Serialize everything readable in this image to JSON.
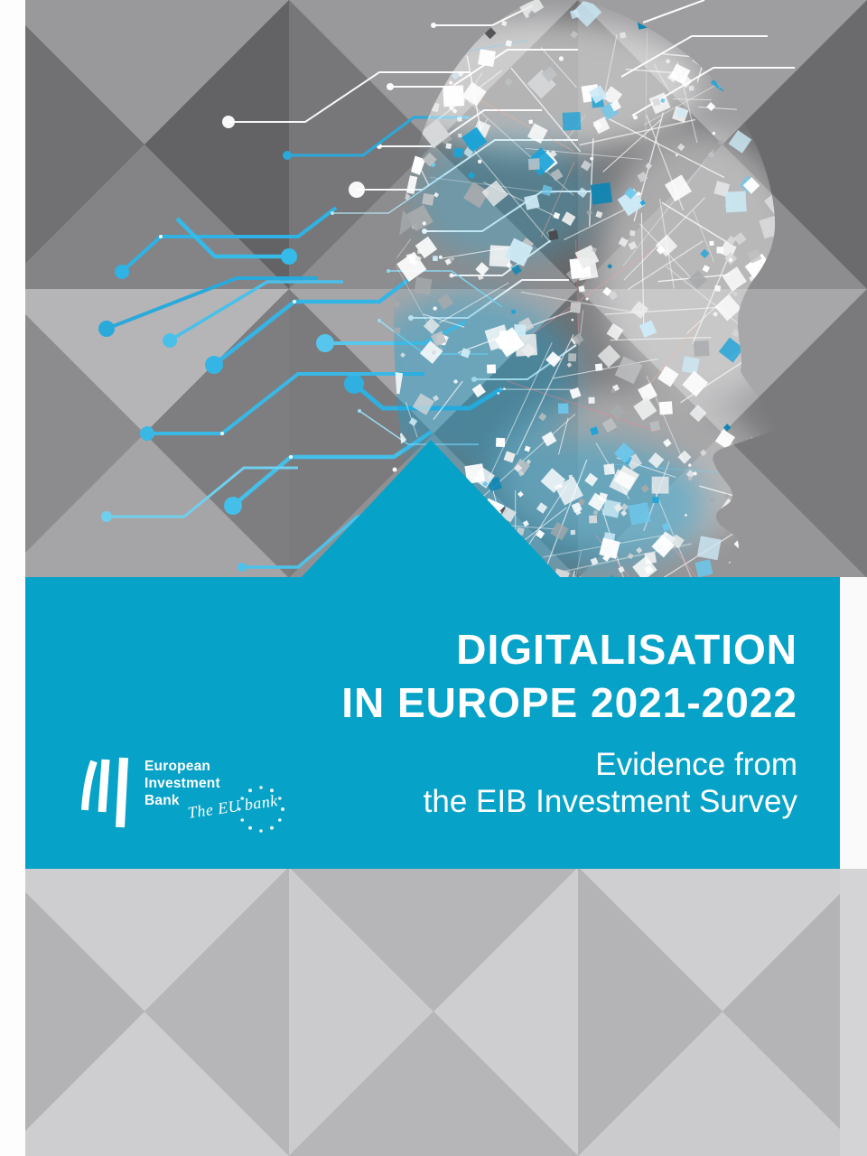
{
  "cover": {
    "title_line1": "DIGITALISATION",
    "title_line2": "IN EUROPE 2021-2022",
    "subtitle_line1": "Evidence from",
    "subtitle_line2": "the EIB Investment Survey"
  },
  "logo": {
    "name_line1": "European",
    "name_line2": "Investment",
    "name_line3": "Bank",
    "tagline": "The EU bank"
  },
  "colors": {
    "accent_teal": "#07a2c7",
    "trace_blue": "#35b6e6",
    "text_white": "#ffffff"
  }
}
